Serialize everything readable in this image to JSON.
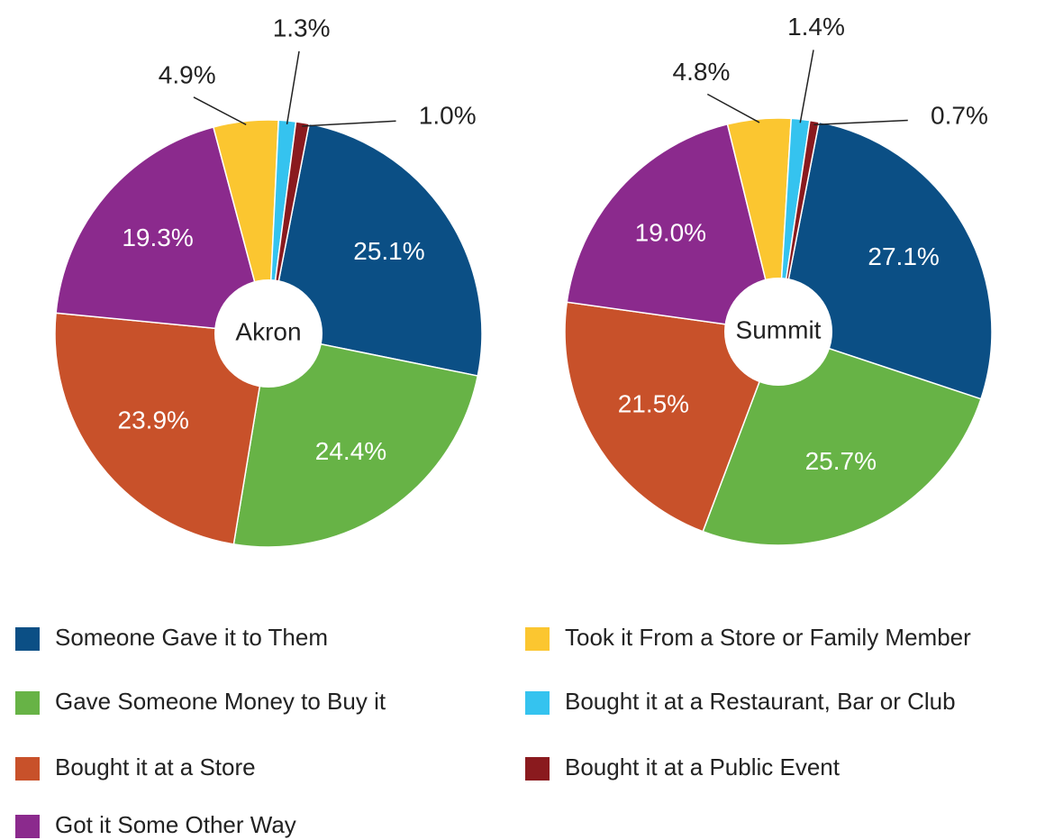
{
  "chart_data": [
    {
      "type": "pie",
      "title": "Akron",
      "values": [
        25.1,
        24.4,
        23.9,
        19.3,
        4.9,
        1.3,
        1.0
      ],
      "value_labels": [
        "25.1%",
        "24.4%",
        "23.9%",
        "19.3%",
        "4.9%",
        "1.3%",
        "1.0%"
      ]
    },
    {
      "type": "pie",
      "title": "Summit",
      "values": [
        27.1,
        25.7,
        21.5,
        19.0,
        4.8,
        1.4,
        0.7
      ],
      "value_labels": [
        "27.1%",
        "25.7%",
        "21.5%",
        "19.0%",
        "4.8%",
        "1.4%",
        "0.7%"
      ]
    }
  ],
  "legend": {
    "categories": [
      "Someone Gave it to Them",
      "Gave Someone Money to Buy it",
      "Bought it at a Store",
      "Got it Some Other Way",
      "Took it From a Store or Family Member",
      "Bought it at a Restaurant, Bar or Club",
      "Bought it at a Public Event"
    ],
    "colors": [
      "#0b4f85",
      "#67b346",
      "#c8512a",
      "#8b2a8d",
      "#fbc630",
      "#35c3ef",
      "#8a1a1e"
    ]
  }
}
